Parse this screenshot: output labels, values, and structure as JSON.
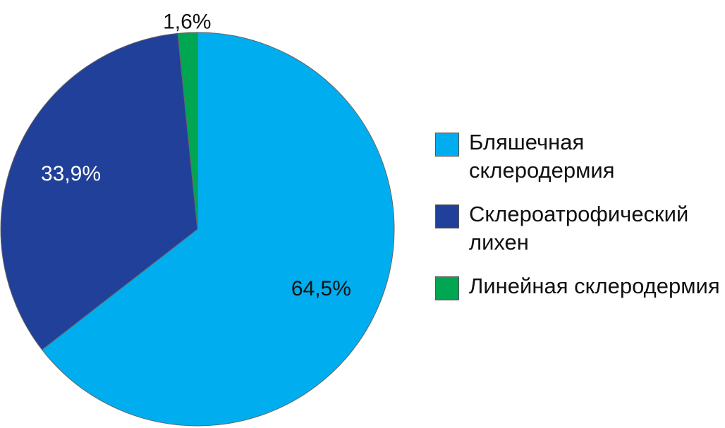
{
  "chart_data": {
    "type": "pie",
    "categories": [
      "Бляшечная склеродермия",
      "Склероатрофический лихен",
      "Линейная склеродермия"
    ],
    "values": [
      64.5,
      33.9,
      1.6
    ],
    "value_labels": [
      "64,5%",
      "33,9%",
      "1,6%"
    ],
    "colors": [
      "#00adef",
      "#21409a",
      "#00a651"
    ],
    "legend": "right"
  }
}
